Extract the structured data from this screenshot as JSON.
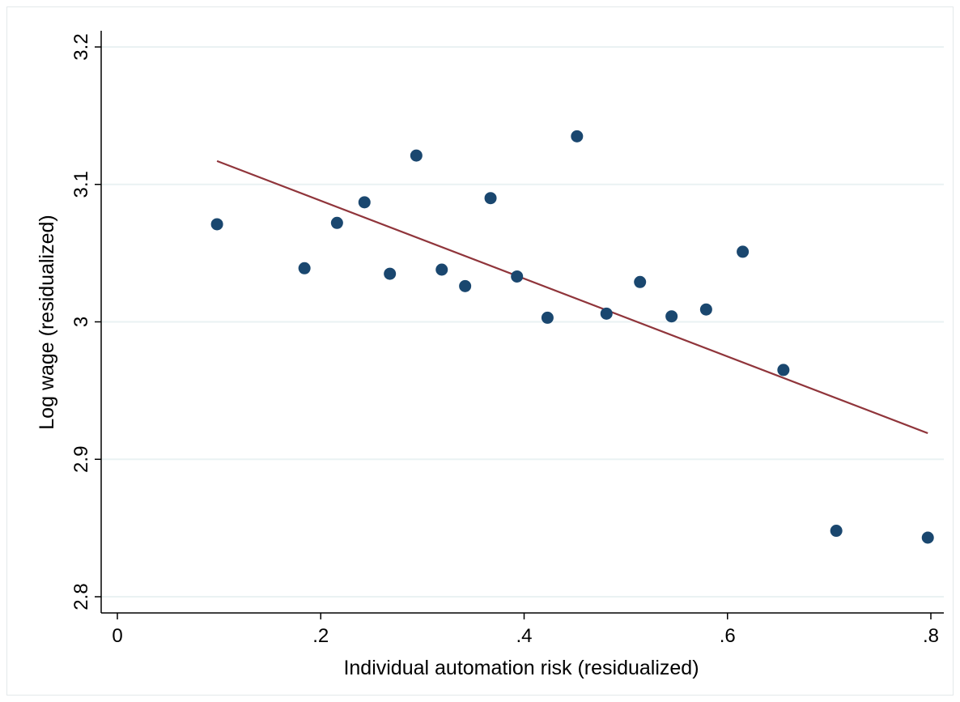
{
  "chart_data": {
    "type": "scatter",
    "title": "",
    "xlabel": "Individual automation risk (residualized)",
    "ylabel": "Log wage (residualized)",
    "xlim": [
      0,
      0.8
    ],
    "ylim": [
      2.8,
      3.2
    ],
    "x_ticks": [
      0,
      0.2,
      0.4,
      0.6,
      0.8
    ],
    "x_tick_labels": [
      "0",
      ".2",
      ".4",
      ".6",
      ".8"
    ],
    "y_ticks": [
      2.8,
      2.9,
      3.0,
      3.1,
      3.2
    ],
    "y_tick_labels": [
      "2.8",
      "2.9",
      "3",
      "3.1",
      "3.2"
    ],
    "grid": "horizontal",
    "colors": {
      "points": "#1a476f",
      "fit_line": "#90353b",
      "grid": "#eaf2f3"
    },
    "points": [
      {
        "x": 0.098,
        "y": 3.071
      },
      {
        "x": 0.184,
        "y": 3.039
      },
      {
        "x": 0.216,
        "y": 3.072
      },
      {
        "x": 0.243,
        "y": 3.087
      },
      {
        "x": 0.268,
        "y": 3.035
      },
      {
        "x": 0.294,
        "y": 3.121
      },
      {
        "x": 0.319,
        "y": 3.038
      },
      {
        "x": 0.342,
        "y": 3.026
      },
      {
        "x": 0.367,
        "y": 3.09
      },
      {
        "x": 0.393,
        "y": 3.033
      },
      {
        "x": 0.423,
        "y": 3.003
      },
      {
        "x": 0.452,
        "y": 3.135
      },
      {
        "x": 0.481,
        "y": 3.006
      },
      {
        "x": 0.514,
        "y": 3.029
      },
      {
        "x": 0.545,
        "y": 3.004
      },
      {
        "x": 0.579,
        "y": 3.009
      },
      {
        "x": 0.615,
        "y": 3.051
      },
      {
        "x": 0.655,
        "y": 2.965
      },
      {
        "x": 0.707,
        "y": 2.848
      },
      {
        "x": 0.797,
        "y": 2.843
      }
    ],
    "fit_line": {
      "x": [
        0.098,
        0.797
      ],
      "y": [
        3.117,
        2.919
      ]
    }
  }
}
